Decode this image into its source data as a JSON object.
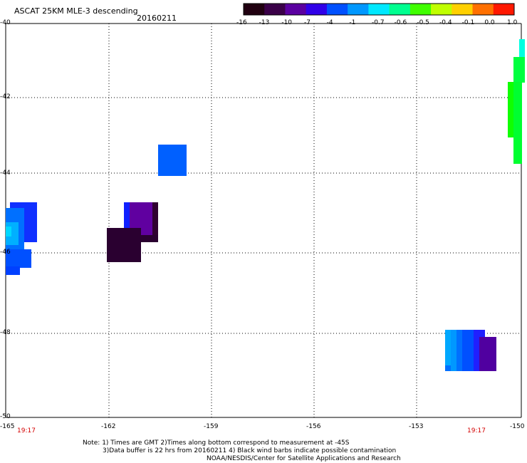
{
  "header": {
    "title": "ASCAT 25KM MLE-3 descending",
    "date": "20160211"
  },
  "colorbar": {
    "labels": [
      "-16",
      "-13",
      "-10",
      "-7",
      "-4",
      "-1",
      "-0.7",
      "-0.6",
      "-0.5",
      "-0.4",
      "-0.1",
      "0.0",
      "1.0"
    ],
    "colors": [
      "#200010",
      "#3a0048",
      "#5a00a0",
      "#3000e8",
      "#0050ff",
      "#0098ff",
      "#00e8ff",
      "#00ff90",
      "#40ff00",
      "#c0ff00",
      "#ffd000",
      "#ff7000",
      "#ff1800"
    ]
  },
  "axes": {
    "x_ticks": [
      "-165",
      "-162",
      "-159",
      "-156",
      "-153",
      "-150"
    ],
    "y_ticks": [
      "-40",
      "-42",
      "-44",
      "-46",
      "-48",
      "-50"
    ],
    "time_labels": [
      "19:17",
      "19:17"
    ]
  },
  "notes": {
    "line1": "Note: 1) Times are GMT 2)Times along bottom correspond to measurement at -45S",
    "line2": "3)Data buffer is 22 hrs from 20160211 4) Black wind barbs indicate possible contamination",
    "line3": "NOAA/NESDIS/Center for Satellite Applications and Research"
  }
}
